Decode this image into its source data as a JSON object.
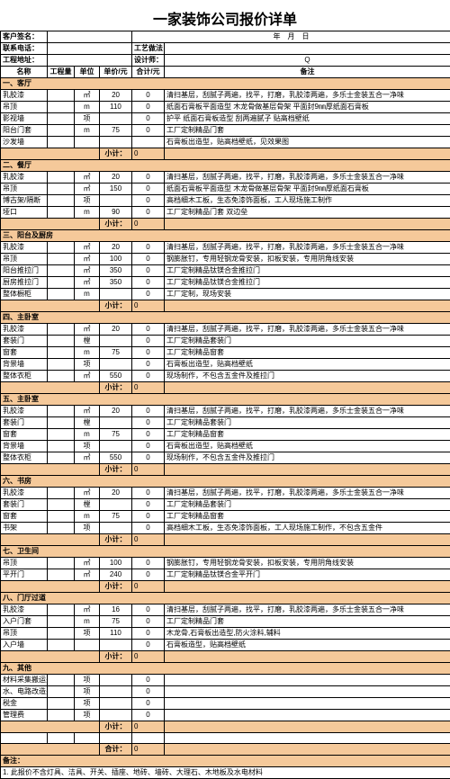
{
  "title": "一家装饰公司报价详单",
  "header": {
    "customer_label": "客户签名：",
    "date_label": "年　月　日",
    "phone_label": "联系电话：",
    "craft_label": "工艺做法：",
    "addr_label": "工程地址：",
    "designer_label": "设计师：",
    "designer_value": "Q"
  },
  "columns": {
    "c1": "名称",
    "c2": "工程量",
    "c3": "单位",
    "c4": "单价/元",
    "c5": "合计/元",
    "c6": "备注"
  },
  "subtotal_label": "小计：",
  "total_label": "合计：",
  "total_value": "0",
  "notes_label": "备注：",
  "note1": "1. 此报价不含灯具、洁具、开关、插座、地砖、墙砖、大理石、木地板及水电材料",
  "sections": [
    {
      "name": "一、客厅",
      "subtotal": "0",
      "rows": [
        {
          "a": "乳胶漆",
          "b": "",
          "c": "㎡",
          "d": "20",
          "e": "0",
          "f": "清扫基层，刮腻子两遍，找平，打磨，乳胶漆两遍，多乐士金装五合一净味"
        },
        {
          "a": "吊顶",
          "b": "",
          "c": "m",
          "d": "110",
          "e": "0",
          "f": "纸面石膏板平面造型 木龙骨做基层骨架 平面封9㎜厚纸面石膏板"
        },
        {
          "a": "影视墙",
          "b": "",
          "c": "项",
          "d": "",
          "e": "0",
          "f": "护平 纸面石膏板造型 刮两遍腻子 贴高档壁纸"
        },
        {
          "a": "阳台门套",
          "b": "",
          "c": "m",
          "d": "75",
          "e": "0",
          "f": "工厂定制精品门套"
        },
        {
          "a": "沙发墙",
          "b": "",
          "c": "",
          "d": "",
          "e": "",
          "f": "石膏板出造型，贴高档壁纸，见效果图"
        }
      ]
    },
    {
      "name": "二、餐厅",
      "subtotal": "0",
      "rows": [
        {
          "a": "乳胶漆",
          "b": "",
          "c": "㎡",
          "d": "20",
          "e": "0",
          "f": "清扫基层，刮腻子两遍，找平，打磨，乳胶漆两遍，多乐士金装五合一净味"
        },
        {
          "a": "吊顶",
          "b": "",
          "c": "㎡",
          "d": "150",
          "e": "0",
          "f": "纸面石膏板平面造型 木龙骨做基层骨架 平面封9㎜厚纸面石膏板"
        },
        {
          "a": "博古架/隔断",
          "b": "",
          "c": "项",
          "d": "",
          "e": "0",
          "f": "高档细木工板，生态免漆饰面板，工人现场施工制作"
        },
        {
          "a": "垭口",
          "b": "",
          "c": "m",
          "d": "90",
          "e": "0",
          "f": "工厂定制精品门套 双边垒"
        }
      ]
    },
    {
      "name": "三、阳台及厨房",
      "subtotal": "0",
      "rows": [
        {
          "a": "乳胶漆",
          "b": "",
          "c": "㎡",
          "d": "20",
          "e": "0",
          "f": "清扫基层，刮腻子两遍，找平，打磨，乳胶漆两遍，多乐士金装五合一净味"
        },
        {
          "a": "吊顶",
          "b": "",
          "c": "㎡",
          "d": "100",
          "e": "0",
          "f": "钢膨胀钉，专用轻钢龙骨安装，扣板安装，专用阴角线安装"
        },
        {
          "a": "阳台推拉门",
          "b": "",
          "c": "㎡",
          "d": "350",
          "e": "0",
          "f": "工厂定制精品钛镁合金推拉门"
        },
        {
          "a": "厨房推拉门",
          "b": "",
          "c": "㎡",
          "d": "350",
          "e": "0",
          "f": "工厂定制精品钛镁合金推拉门"
        },
        {
          "a": "整体橱柜",
          "b": "",
          "c": "m",
          "d": "",
          "e": "0",
          "f": "工厂定制，现场安装"
        }
      ]
    },
    {
      "name": "四、主卧室",
      "subtotal": "0",
      "rows": [
        {
          "a": "乳胶漆",
          "b": "",
          "c": "㎡",
          "d": "20",
          "e": "0",
          "f": "清扫基层，刮腻子两遍，找平，打磨，乳胶漆两遍，多乐士金装五合一净味"
        },
        {
          "a": "套装门",
          "b": "",
          "c": "樘",
          "d": "",
          "e": "0",
          "f": "工厂定制精品套装门"
        },
        {
          "a": "窗套",
          "b": "",
          "c": "m",
          "d": "75",
          "e": "0",
          "f": "工厂定制精品窗套"
        },
        {
          "a": "背景墙",
          "b": "",
          "c": "项",
          "d": "",
          "e": "0",
          "f": "石膏板出造型，贴高档壁纸"
        },
        {
          "a": "整体衣柜",
          "b": "",
          "c": "㎡",
          "d": "550",
          "e": "0",
          "f": "现场制作，不包含五金件及推拉门"
        }
      ]
    },
    {
      "name": "五、主卧室",
      "subtotal": "0",
      "rows": [
        {
          "a": "乳胶漆",
          "b": "",
          "c": "㎡",
          "d": "20",
          "e": "0",
          "f": "清扫基层，刮腻子两遍，找平，打磨，乳胶漆两遍，多乐士金装五合一净味"
        },
        {
          "a": "套装门",
          "b": "",
          "c": "樘",
          "d": "",
          "e": "0",
          "f": "工厂定制精品套装门"
        },
        {
          "a": "窗套",
          "b": "",
          "c": "m",
          "d": "75",
          "e": "0",
          "f": "工厂定制精品窗套"
        },
        {
          "a": "背景墙",
          "b": "",
          "c": "项",
          "d": "",
          "e": "0",
          "f": "石膏板出造型，贴高档壁纸"
        },
        {
          "a": "整体衣柜",
          "b": "",
          "c": "㎡",
          "d": "550",
          "e": "0",
          "f": "现场制作，不包含五金件及推拉门"
        }
      ]
    },
    {
      "name": "六、书房",
      "subtotal": "0",
      "rows": [
        {
          "a": "乳胶漆",
          "b": "",
          "c": "㎡",
          "d": "20",
          "e": "0",
          "f": "清扫基层，刮腻子两遍，找平，打磨，乳胶漆两遍，多乐士金装五合一净味"
        },
        {
          "a": "套装门",
          "b": "",
          "c": "樘",
          "d": "",
          "e": "0",
          "f": "工厂定制精品套装门"
        },
        {
          "a": "窗套",
          "b": "",
          "c": "m",
          "d": "75",
          "e": "0",
          "f": "工厂定制精品窗套"
        },
        {
          "a": "书架",
          "b": "",
          "c": "项",
          "d": "",
          "e": "0",
          "f": "高档细木工板，生态免漆饰面板，工人现场施工制作，不包含五金件"
        }
      ]
    },
    {
      "name": "七、卫生间",
      "subtotal": "0",
      "rows": [
        {
          "a": "吊顶",
          "b": "",
          "c": "㎡",
          "d": "100",
          "e": "0",
          "f": "钢膨胀钉，专用轻钢龙骨安装，扣板安装，专用阴角线安装"
        },
        {
          "a": "平开门",
          "b": "",
          "c": "㎡",
          "d": "240",
          "e": "0",
          "f": "工厂定制精品钛镁合金平开门"
        }
      ]
    },
    {
      "name": "八、门厅过道",
      "subtotal": "0",
      "rows": [
        {
          "a": "乳胶漆",
          "b": "",
          "c": "㎡",
          "d": "16",
          "e": "0",
          "f": "清扫基层，刮腻子两遍，找平，打磨，乳胶漆两遍，多乐士金装五合一净味"
        },
        {
          "a": "入户门套",
          "b": "",
          "c": "m",
          "d": "75",
          "e": "0",
          "f": "工厂定制精品门套"
        },
        {
          "a": "吊顶",
          "b": "",
          "c": "项",
          "d": "110",
          "e": "0",
          "f": "木龙骨,石膏板出造型,防火涂料,辅料"
        },
        {
          "a": "入户墙",
          "b": "",
          "c": "",
          "d": "",
          "e": "0",
          "f": "石膏板造型，贴高档壁纸"
        }
      ]
    },
    {
      "name": "九、其他",
      "subtotal": "0",
      "rows": [
        {
          "a": "材料采集搬运费",
          "b": "",
          "c": "项",
          "d": "",
          "e": "0",
          "f": ""
        },
        {
          "a": "水、电路改造费",
          "b": "",
          "c": "项",
          "d": "",
          "e": "0",
          "f": ""
        },
        {
          "a": "税金",
          "b": "",
          "c": "项",
          "d": "",
          "e": "0",
          "f": ""
        },
        {
          "a": "管理费",
          "b": "",
          "c": "项",
          "d": "",
          "e": "0",
          "f": ""
        }
      ]
    }
  ]
}
